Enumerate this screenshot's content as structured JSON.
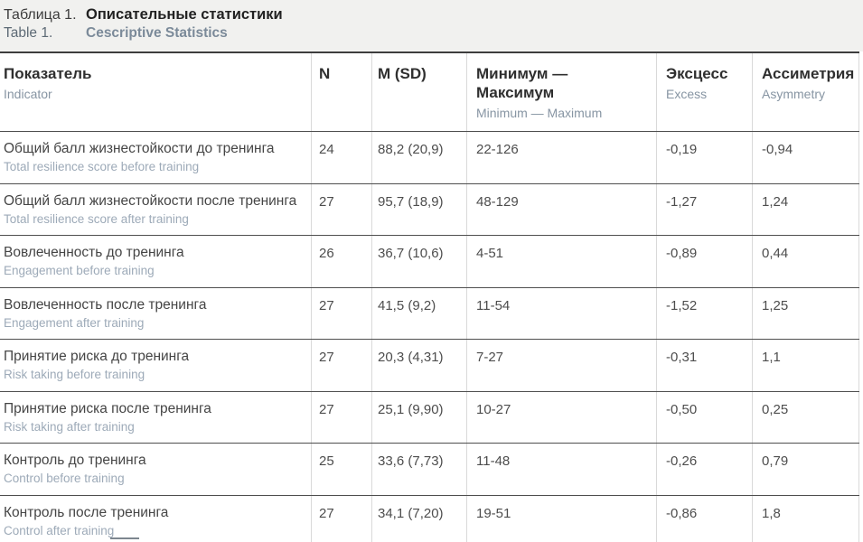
{
  "caption": {
    "label_ru": "Таблица 1.",
    "title_ru": "Описательные статистики",
    "label_en": "Table 1.",
    "title_en": "Cescriptive Statistics"
  },
  "table": {
    "columns": [
      {
        "ru": "Показатель",
        "en": "Indicator"
      },
      {
        "ru": "N",
        "en": ""
      },
      {
        "ru": "M (SD)",
        "en": ""
      },
      {
        "ru": "Минимум —\nМаксимум",
        "en": "Minimum — Maximum"
      },
      {
        "ru": "Эксцесс",
        "en": "Excess"
      },
      {
        "ru": "Ассиметрия",
        "en": "Asymmetry"
      }
    ],
    "rows": [
      {
        "ru": "Общий балл жизнестойкости до тренинга",
        "en": "Total resilience score before training",
        "n": "24",
        "m_sd": "88,2 (20,9)",
        "min_max": "22-126",
        "excess": "-0,19",
        "asymmetry": "-0,94"
      },
      {
        "ru": "Общий балл жизнестойкости после тренинга",
        "en": "Total resilience score after training",
        "n": "27",
        "m_sd": "95,7 (18,9)",
        "min_max": "48-129",
        "excess": "-1,27",
        "asymmetry": "1,24"
      },
      {
        "ru": "Вовлеченность до тренинга",
        "en": "Engagement before training",
        "n": "26",
        "m_sd": "36,7 (10,6)",
        "min_max": "4-51",
        "excess": "-0,89",
        "asymmetry": "0,44"
      },
      {
        "ru": "Вовлеченность после тренинга",
        "en": "Engagement after training",
        "n": "27",
        "m_sd": "41,5 (9,2)",
        "min_max": "11-54",
        "excess": "-1,52",
        "asymmetry": "1,25"
      },
      {
        "ru": "Принятие риска до тренинга",
        "en": "Risk taking before training",
        "n": "27",
        "m_sd": "20,3 (4,31)",
        "min_max": "7-27",
        "excess": "-0,31",
        "asymmetry": "1,1"
      },
      {
        "ru": "Принятие риска после тренинга",
        "en": "Risk taking after training",
        "n": "27",
        "m_sd": "25,1 (9,90)",
        "min_max": "10-27",
        "excess": "-0,50",
        "asymmetry": "0,25"
      },
      {
        "ru": "Контроль до тренинга",
        "en": "Control before training",
        "n": "25",
        "m_sd": "33,6 (7,73)",
        "min_max": "11-48",
        "excess": "-0,26",
        "asymmetry": "0,79"
      },
      {
        "ru": "Контроль после тренинга",
        "en": "Control after training",
        "n": "27",
        "m_sd": "34,1 (7,20)",
        "min_max": "19-51",
        "excess": "-0,86",
        "asymmetry": "1,8"
      }
    ]
  },
  "colors": {
    "caption_band_bg": "#f1f1ef",
    "table_top_border": "#3d3d3d",
    "row_border": "#4e4e4e",
    "column_border": "#d9d9d9",
    "primary_text": "#454545",
    "secondary_text": "#9daab8",
    "header_secondary_text": "#8795a3"
  }
}
